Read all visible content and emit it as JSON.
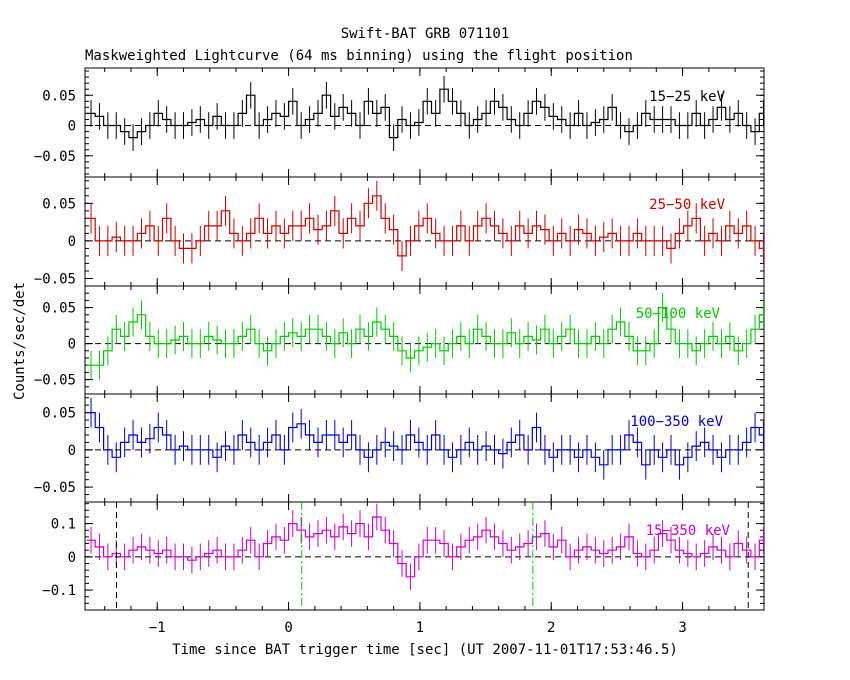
{
  "chart_data": {
    "type": "line",
    "title": "Swift-BAT GRB 071101",
    "subtitle": "Maskweighted Lightcurve (64 ms binning) using the flight position",
    "xlabel": "Time since BAT trigger time [sec] (UT 2007-11-01T17:53:46.5)",
    "ylabel": "Counts/sec/det",
    "xlim": [
      -1.55,
      3.62
    ],
    "xticks": [
      -1,
      0,
      1,
      2,
      3
    ],
    "xtick_labels": [
      "−1",
      "0",
      "1",
      "2",
      "3"
    ],
    "bin_width": 0.064,
    "x_start": -1.536,
    "vertical_lines": [
      {
        "x": -1.31,
        "color": "#000000",
        "style": "dashed"
      },
      {
        "x": 0.1,
        "color": "#00c800",
        "style": "dashdot"
      },
      {
        "x": 1.86,
        "color": "#00c800",
        "style": "dashdot"
      },
      {
        "x": 3.5,
        "color": "#000000",
        "style": "dashed"
      }
    ],
    "panels": [
      {
        "label": "15−25 keV",
        "color": "#000000",
        "ylim": [
          -0.085,
          0.095
        ],
        "yticks": [
          0.05,
          0,
          -0.05
        ],
        "ytick_labels": [
          "0.05",
          "0",
          "−0.05"
        ],
        "values": [
          0.02,
          0.015,
          0.0,
          0.0,
          -0.01,
          -0.02,
          -0.01,
          0.0,
          0.02,
          0.01,
          0.0,
          0.0,
          0.005,
          0.01,
          0.0,
          0.015,
          0.0,
          0.0,
          0.02,
          0.05,
          0.0,
          0.01,
          0.02,
          0.015,
          0.04,
          0.0,
          0.01,
          0.02,
          0.05,
          0.015,
          0.03,
          0.02,
          0.0,
          0.04,
          0.02,
          0.03,
          -0.02,
          0.01,
          0.0,
          0.005,
          0.04,
          0.02,
          0.06,
          0.04,
          0.02,
          0.0,
          0.01,
          0.02,
          0.04,
          0.03,
          0.01,
          0.0,
          0.02,
          0.04,
          0.03,
          0.015,
          0.01,
          0.0,
          0.02,
          0.0,
          0.005,
          0.01,
          0.03,
          0.0,
          -0.01,
          0.0,
          0.02,
          0.01,
          0.01,
          0.01,
          0.0,
          0.0,
          0.02,
          0.0,
          0.01,
          0.03,
          0.01,
          0.02,
          0.0,
          -0.01,
          0.02
        ],
        "errors": 0.022
      },
      {
        "label": "25−50 keV",
        "color": "#c80000",
        "ylim": [
          -0.06,
          0.085
        ],
        "yticks": [
          0.05,
          0,
          -0.05
        ],
        "ytick_labels": [
          "0.05",
          "0",
          "−0.05"
        ],
        "values": [
          0.03,
          0.0,
          0.0,
          0.005,
          0.0,
          0.0,
          0.01,
          0.02,
          0.0,
          0.03,
          0.0,
          -0.01,
          -0.01,
          0.0,
          0.02,
          0.02,
          0.04,
          0.01,
          0.0,
          0.01,
          0.03,
          0.01,
          0.02,
          0.01,
          0.02,
          0.02,
          0.03,
          0.015,
          0.02,
          0.04,
          0.01,
          0.03,
          0.02,
          0.05,
          0.06,
          0.03,
          0.015,
          -0.02,
          0.0,
          0.02,
          0.03,
          0.01,
          0.0,
          0.0,
          0.02,
          0.0,
          0.02,
          0.03,
          0.02,
          0.01,
          0.0,
          0.02,
          0.01,
          0.02,
          0.015,
          0.0,
          0.01,
          0.0,
          0.015,
          0.01,
          0.0,
          0.005,
          0.01,
          0.0,
          0.0,
          0.01,
          0.0,
          0.0,
          0.0,
          -0.01,
          0.01,
          0.02,
          0.03,
          0.0,
          0.01,
          0.0,
          0.02,
          0.01,
          0.02,
          0.0,
          -0.01
        ],
        "errors": 0.02
      },
      {
        "label": "50−100 keV",
        "color": "#00c800",
        "ylim": [
          -0.07,
          0.08
        ],
        "yticks": [
          0.05,
          0,
          -0.05
        ],
        "ytick_labels": [
          "0.05",
          "0",
          "−0.05"
        ],
        "values": [
          -0.03,
          -0.03,
          -0.01,
          0.02,
          0.01,
          0.03,
          0.04,
          0.01,
          0.0,
          0.0,
          0.005,
          0.01,
          0.0,
          0.0,
          0.01,
          0.005,
          0.0,
          0.0,
          0.01,
          0.02,
          0.0,
          -0.01,
          0.0,
          0.01,
          0.015,
          0.01,
          0.02,
          0.02,
          0.01,
          0.0,
          0.015,
          0.0,
          0.02,
          0.01,
          0.03,
          0.02,
          0.01,
          -0.01,
          -0.02,
          -0.01,
          -0.005,
          0.0,
          -0.01,
          0.0,
          0.01,
          0.0,
          0.02,
          0.01,
          0.0,
          0.0,
          0.015,
          0.0,
          0.01,
          0.005,
          0.02,
          0.0,
          0.01,
          0.02,
          0.0,
          0.0,
          0.01,
          0.0,
          0.02,
          0.03,
          0.01,
          -0.01,
          -0.01,
          0.0,
          0.05,
          0.02,
          0.0,
          0.0,
          -0.01,
          0.0,
          0.01,
          0.0,
          0.01,
          -0.01,
          0.0,
          0.02,
          0.04
        ],
        "errors": 0.02
      },
      {
        "label": "100−350 keV",
        "color": "#0000c8",
        "ylim": [
          -0.07,
          0.075
        ],
        "yticks": [
          0.05,
          0,
          -0.05
        ],
        "ytick_labels": [
          "0.05",
          "0",
          "−0.05"
        ],
        "values": [
          0.05,
          0.03,
          0.0,
          -0.01,
          0.01,
          0.02,
          0.01,
          0.015,
          0.03,
          0.02,
          0.0,
          0.005,
          0.0,
          0.0,
          0.0,
          -0.01,
          0.005,
          0.0,
          0.02,
          0.01,
          0.0,
          0.01,
          0.02,
          0.0,
          0.03,
          0.035,
          0.02,
          0.01,
          0.02,
          0.02,
          0.01,
          0.02,
          0.0,
          -0.01,
          0.0,
          0.01,
          0.005,
          0.0,
          0.02,
          0.01,
          0.0,
          0.02,
          0.0,
          -0.01,
          0.0,
          0.01,
          0.0,
          0.005,
          0.0,
          -0.005,
          0.01,
          0.02,
          0.0,
          0.03,
          0.0,
          -0.01,
          0.0,
          0.0,
          -0.01,
          0.0,
          -0.01,
          -0.02,
          0.0,
          0.0,
          0.02,
          0.01,
          -0.02,
          0.0,
          -0.01,
          0.0,
          -0.02,
          -0.01,
          0.005,
          0.01,
          0.0,
          -0.01,
          0.0,
          0.0,
          0.01,
          0.03,
          0.02
        ],
        "errors": 0.02
      },
      {
        "label": "15−350 keV",
        "color": "#c800c8",
        "ylim": [
          -0.16,
          0.165
        ],
        "yticks": [
          0.1,
          0,
          -0.1
        ],
        "ytick_labels": [
          "0.1",
          "0",
          "−0.1"
        ],
        "values": [
          0.05,
          0.03,
          0.0,
          0.01,
          0.0,
          0.02,
          0.03,
          0.02,
          0.01,
          0.02,
          0.0,
          0.0,
          -0.01,
          0.0,
          0.01,
          0.02,
          0.0,
          0.0,
          0.02,
          0.05,
          0.0,
          0.04,
          0.06,
          0.05,
          0.1,
          0.08,
          0.06,
          0.07,
          0.08,
          0.06,
          0.09,
          0.07,
          0.1,
          0.06,
          0.12,
          0.08,
          0.04,
          -0.02,
          -0.06,
          0.0,
          0.05,
          0.05,
          0.04,
          0.0,
          0.03,
          0.05,
          0.06,
          0.08,
          0.06,
          0.04,
          0.02,
          0.03,
          0.04,
          0.06,
          0.07,
          0.03,
          0.05,
          0.0,
          0.02,
          0.03,
          0.02,
          0.01,
          0.02,
          0.03,
          0.06,
          0.01,
          0.0,
          0.02,
          0.07,
          0.05,
          0.02,
          0.01,
          0.0,
          0.01,
          0.03,
          0.02,
          0.0,
          0.04,
          0.02,
          0.0,
          0.05
        ],
        "errors": 0.04
      }
    ]
  }
}
